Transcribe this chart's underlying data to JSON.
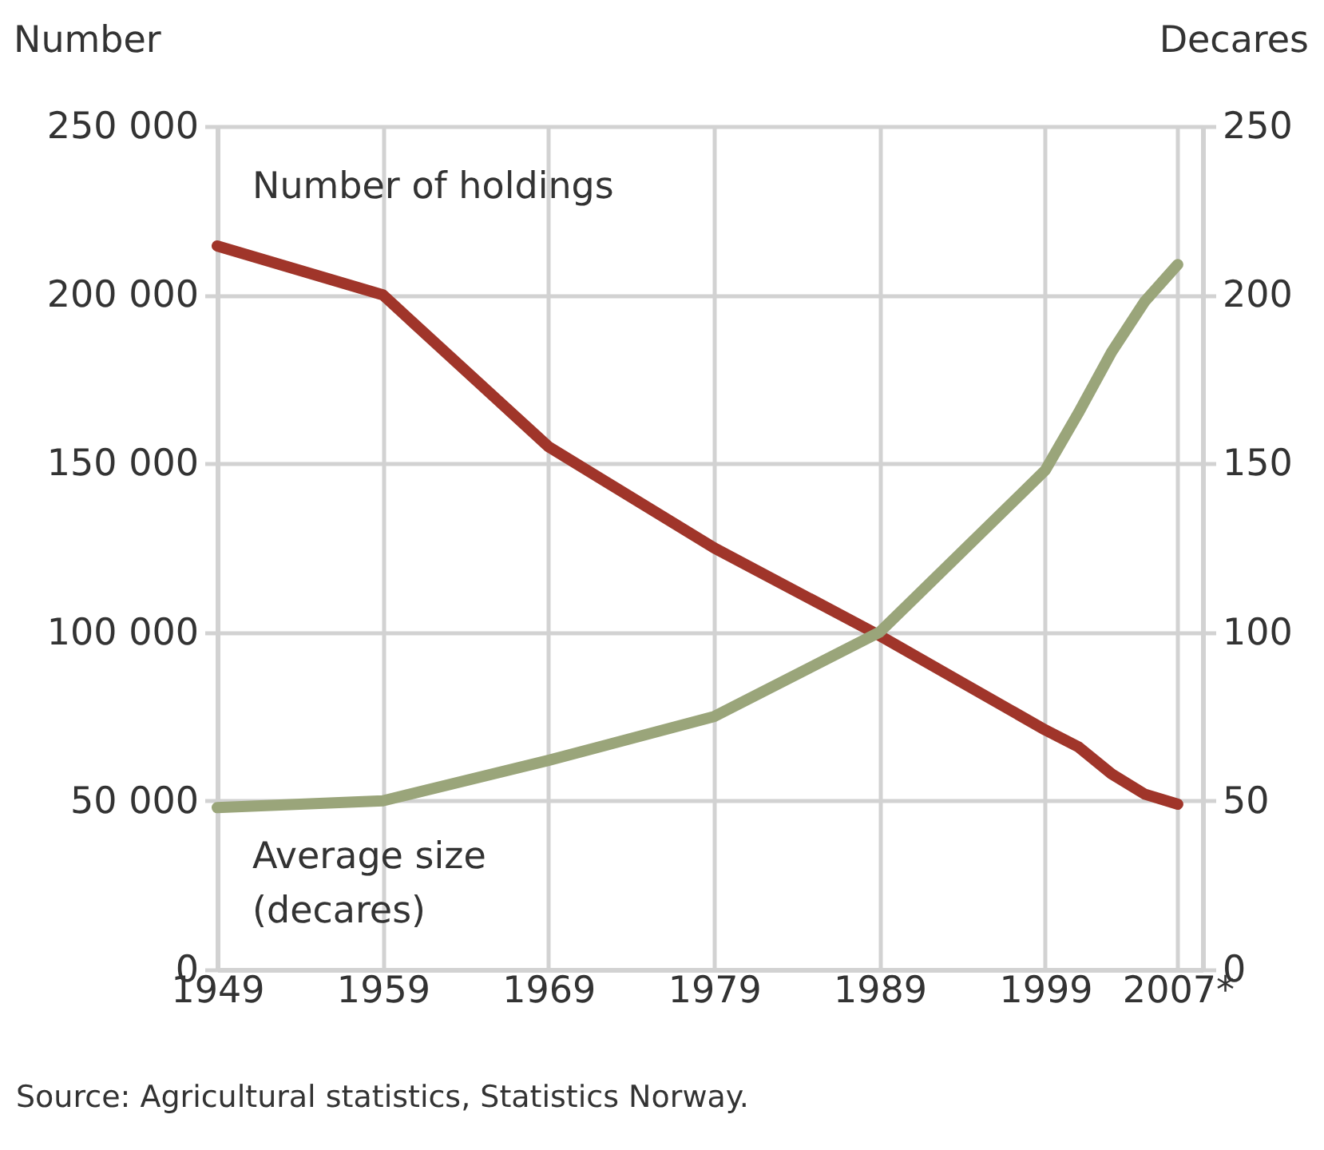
{
  "chart_data": {
    "type": "line",
    "x": [
      1949,
      1959,
      1969,
      1979,
      1989,
      1994,
      1999,
      2001,
      2003,
      2005,
      2007
    ],
    "series": [
      {
        "name": "Number of holdings",
        "color": "#a0352a",
        "values": [
          214500,
          200000,
          155000,
          125000,
          99000,
          85000,
          71000,
          66000,
          58000,
          52000,
          49000
        ]
      },
      {
        "name": "Average size (decares)",
        "color": "#9aa57a",
        "axis": "y2",
        "values": [
          48,
          50,
          62,
          75,
          100,
          124,
          148,
          165,
          183,
          198,
          209
        ]
      }
    ],
    "ylabel": "Number",
    "y2label": "Decares",
    "xlim": [
      1949,
      2008.5
    ],
    "xticks": [
      1949,
      1959,
      1969,
      1979,
      1989,
      1999,
      {
        "value": 2007,
        "label": "2007*"
      }
    ],
    "ylim": [
      0,
      250000
    ],
    "yticks": [
      0,
      {
        "value": 50000,
        "label": "50 000"
      },
      {
        "value": 100000,
        "label": "100 000"
      },
      {
        "value": 150000,
        "label": "150 000"
      },
      {
        "value": 200000,
        "label": "200 000"
      },
      {
        "value": 250000,
        "label": "250 000"
      }
    ],
    "y2lim": [
      0,
      250
    ],
    "y2ticks": [
      0,
      50,
      100,
      150,
      200,
      250
    ],
    "grid": true,
    "line_style": "solid",
    "annotations": [
      "Source: Agricultural statistics, Statistics Norway."
    ]
  }
}
